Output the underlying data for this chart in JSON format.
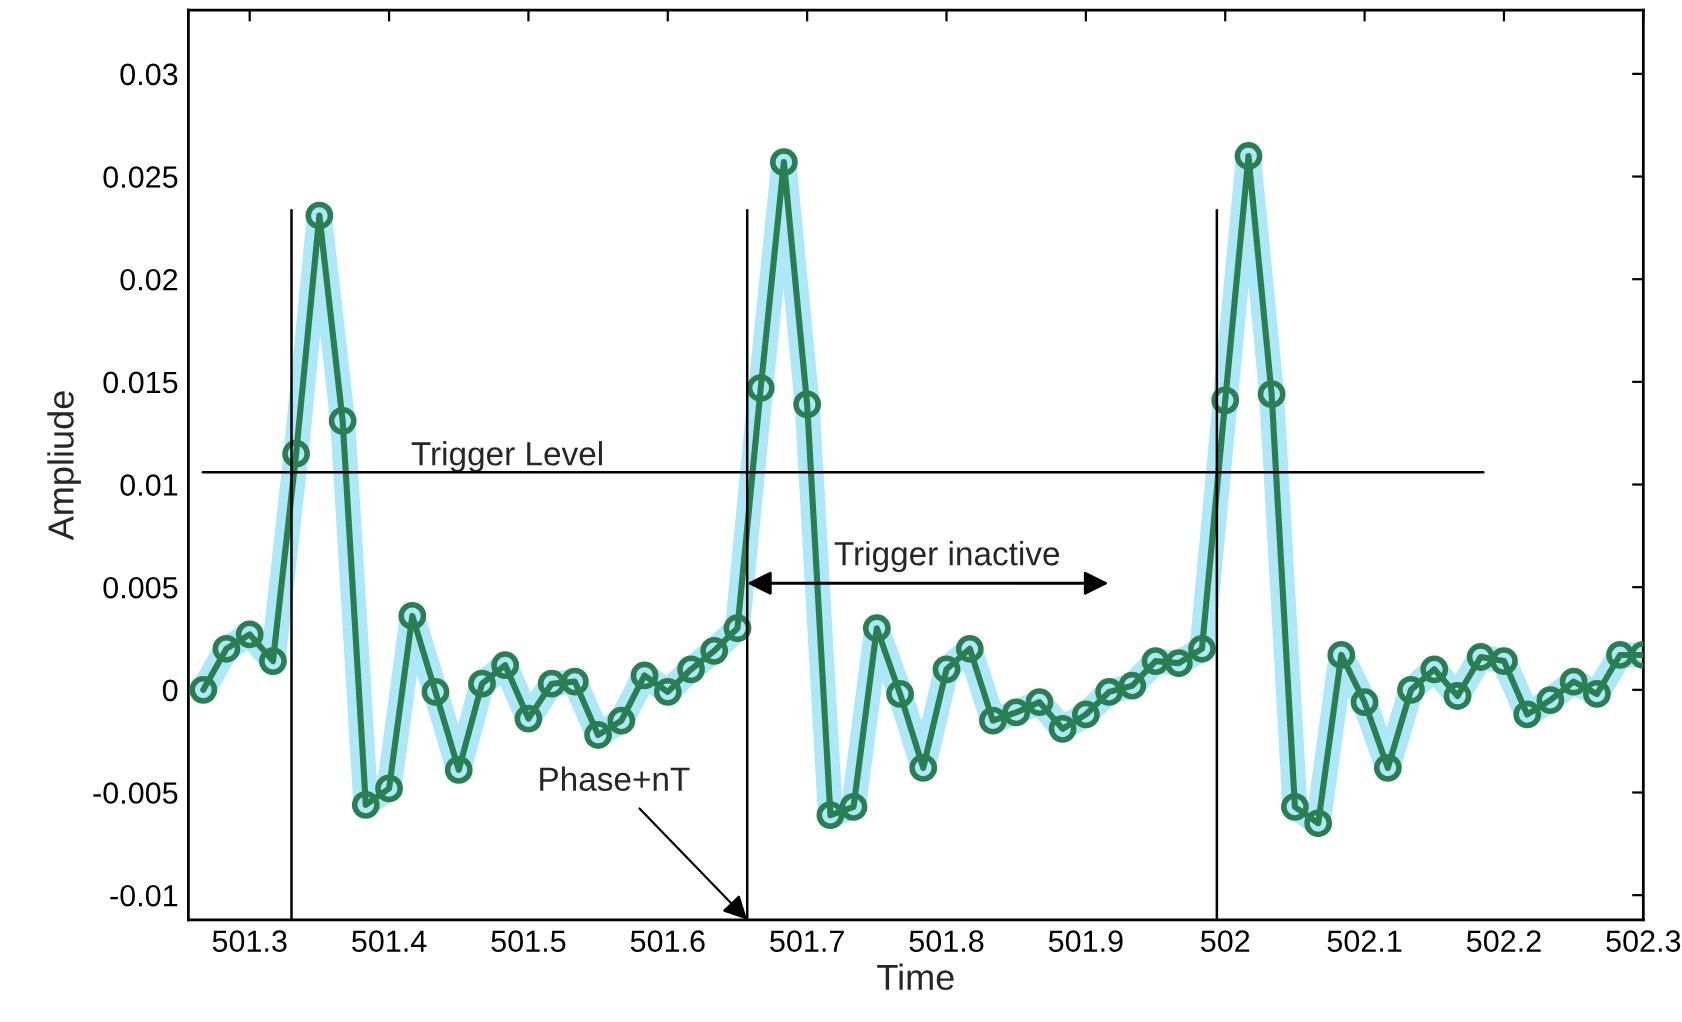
{
  "chart_data": {
    "type": "line",
    "xlabel": "Time",
    "ylabel": "Ampliude",
    "x": [
      501.2667,
      501.2833,
      501.3,
      501.3167,
      501.3333,
      501.35,
      501.3667,
      501.3833,
      501.4,
      501.4167,
      501.4333,
      501.45,
      501.4667,
      501.4833,
      501.5,
      501.5167,
      501.5333,
      501.55,
      501.5667,
      501.5833,
      501.6,
      501.6167,
      501.6333,
      501.65,
      501.6667,
      501.6833,
      501.7,
      501.7167,
      501.7333,
      501.75,
      501.7667,
      501.7833,
      501.8,
      501.8167,
      501.8333,
      501.85,
      501.8667,
      501.8833,
      501.9,
      501.9167,
      501.9333,
      501.95,
      501.9667,
      501.9833,
      502.0,
      502.0167,
      502.0333,
      502.05,
      502.0667,
      502.0833,
      502.1,
      502.1167,
      502.1333,
      502.15,
      502.1667,
      502.1833,
      502.2,
      502.2167,
      502.2333,
      502.25,
      502.2667,
      502.2833,
      502.3
    ],
    "series": [
      {
        "color": "#aee8f8",
        "marker": "none",
        "values": [
          0.0,
          0.002,
          0.0027,
          0.0014,
          0.0115,
          0.0231,
          0.0131,
          -0.0056,
          -0.0048,
          0.0036,
          -0.0001,
          -0.0039,
          0.0003,
          0.0012,
          -0.0014,
          0.0003,
          0.0004,
          -0.0022,
          -0.0015,
          0.0007,
          -0.0001,
          0.001,
          0.0019,
          0.003,
          0.0147,
          0.0257,
          0.0139,
          -0.0061,
          -0.0057,
          0.003,
          -0.0002,
          -0.0038,
          0.001,
          0.002,
          -0.0015,
          -0.0011,
          -0.0006,
          -0.0019,
          -0.0012,
          -0.0001,
          0.0002,
          0.0014,
          0.0013,
          0.002,
          0.0141,
          0.026,
          0.0144,
          -0.0057,
          -0.0065,
          0.0017,
          -0.0006,
          -0.0038,
          0.0,
          0.001,
          -0.0003,
          0.0016,
          0.0014,
          -0.0012,
          -0.0005,
          0.0004,
          -0.0002,
          0.0017,
          0.0017
        ]
      },
      {
        "color": "#2a7f52",
        "marker": "circle",
        "values": [
          0.0,
          0.002,
          0.0027,
          0.0014,
          0.0115,
          0.0231,
          0.0131,
          -0.0056,
          -0.0048,
          0.0036,
          -0.0001,
          -0.0039,
          0.0003,
          0.0012,
          -0.0014,
          0.0003,
          0.0004,
          -0.0022,
          -0.0015,
          0.0007,
          -0.0001,
          0.001,
          0.0019,
          0.003,
          0.0147,
          0.0257,
          0.0139,
          -0.0061,
          -0.0057,
          0.003,
          -0.0002,
          -0.0038,
          0.001,
          0.002,
          -0.0015,
          -0.0011,
          -0.0006,
          -0.0019,
          -0.0012,
          -0.0001,
          0.0002,
          0.0014,
          0.0013,
          0.002,
          0.0141,
          0.026,
          0.0144,
          -0.0057,
          -0.0065,
          0.0017,
          -0.0006,
          -0.0038,
          0.0,
          0.001,
          -0.0003,
          0.0016,
          0.0014,
          -0.0012,
          -0.0005,
          0.0004,
          -0.0002,
          0.0017,
          0.0017
        ]
      }
    ],
    "xlim": [
      501.256,
      502.3
    ],
    "xticks": [
      501.3,
      501.4,
      501.5,
      501.6,
      501.7,
      501.8,
      501.9,
      502,
      502.1,
      502.2,
      502.3
    ],
    "ylim": [
      -0.0112,
      0.0331
    ],
    "yticks": [
      -0.01,
      -0.005,
      0,
      0.005,
      0.01,
      0.015,
      0.02,
      0.025,
      0.03
    ],
    "ref_lines": [
      {
        "axis": "y",
        "value": 0.0106,
        "color": "#000000"
      },
      {
        "axis": "x",
        "value": 501.33,
        "color": "#000000"
      },
      {
        "axis": "x",
        "value": 501.657,
        "color": "#000000"
      },
      {
        "axis": "x",
        "value": 501.994,
        "color": "#000000"
      }
    ],
    "annotations": [
      {
        "text": "Trigger Level",
        "x": 501.485,
        "y": 0.0106
      },
      "Trigger inactive",
      {
        "text": "Phase+nT",
        "x": 501.657,
        "y": -0.0112
      }
    ],
    "grid": false
  }
}
